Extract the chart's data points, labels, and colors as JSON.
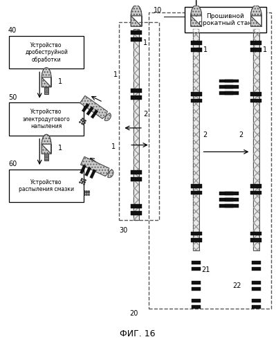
{
  "title": "ФИГ. 16",
  "box_label_10": "10",
  "box_text_10": "Прошивной\nпрокатный стан",
  "box_label_40": "40",
  "box_label_50": "50",
  "box_label_60": "60",
  "box_label_30": "30",
  "box_label_20": "20",
  "box_label_21": "21",
  "box_label_22": "22",
  "box_text_40": "Устройство\nдробеструйной\nобработки",
  "box_text_50": "Устройство\nэлектродугового\nнапыления",
  "box_text_60": "Устройство\nраспыления смазки",
  "label_1": "1",
  "label_2": "2",
  "bg_color": "#ffffff"
}
